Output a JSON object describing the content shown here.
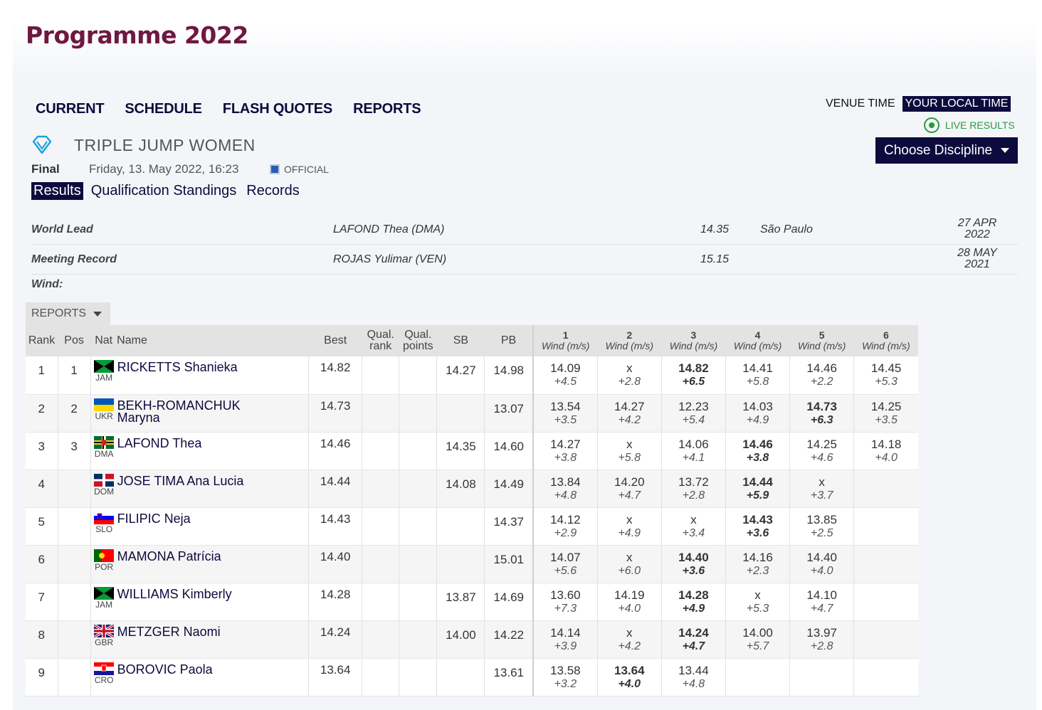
{
  "header": {
    "title": "Programme 2022"
  },
  "nav": [
    {
      "label": "CURRENT"
    },
    {
      "label": "SCHEDULE"
    },
    {
      "label": "FLASH QUOTES"
    },
    {
      "label": "REPORTS"
    }
  ],
  "time": {
    "venue_label": "VENUE TIME",
    "local_label": "YOUR LOCAL TIME"
  },
  "live_results": "LIVE RESULTS",
  "choose_discipline": "Choose Discipline",
  "event": {
    "title": "TRIPLE JUMP WOMEN",
    "round": "Final",
    "datetime": "Friday, 13. May 2022, 16:23",
    "status": "OFFICIAL"
  },
  "tabs": [
    {
      "label": "Results"
    },
    {
      "label": "Qualification Standings"
    },
    {
      "label": "Records"
    }
  ],
  "records": [
    {
      "label": "World Lead",
      "athlete": "LAFOND Thea (DMA)",
      "mark": "14.35",
      "venue": "São Paulo",
      "date1": "27 APR",
      "date2": "2022"
    },
    {
      "label": "Meeting Record",
      "athlete": "ROJAS Yulimar (VEN)",
      "mark": "15.15",
      "venue": "",
      "date1": "28 MAY",
      "date2": "2021"
    }
  ],
  "wind_label": "Wind:",
  "reports_dropdown": "REPORTS",
  "columns": {
    "rank": "Rank",
    "pos": "Pos",
    "nat": "Nat",
    "name": "Name",
    "best": "Best",
    "qual_rank_1": "Qual.",
    "qual_rank_2": "rank",
    "qual_points_1": "Qual.",
    "qual_points_2": "points",
    "sb": "SB",
    "pb": "PB",
    "attempts": [
      "1",
      "2",
      "3",
      "4",
      "5",
      "6"
    ],
    "wind_unit": "Wind (m/s)"
  },
  "flag_colors": {
    "JAM": [
      "#009b3a",
      "#fed100",
      "#000000"
    ],
    "UKR": [
      "#0057b7",
      "#ffd700"
    ],
    "DMA": [
      "#006b3f",
      "#fcd116",
      "#000000",
      "#ffffff",
      "#d41c30"
    ],
    "DOM": [
      "#002d62",
      "#ce1126",
      "#ffffff"
    ],
    "SLO": [
      "#ffffff",
      "#0000ff",
      "#ff0000"
    ],
    "POR": [
      "#006600",
      "#ff0000"
    ],
    "GBR": [
      "#012169",
      "#ffffff",
      "#c8102e"
    ],
    "CRO": [
      "#ff0000",
      "#ffffff",
      "#171796"
    ]
  },
  "results": [
    {
      "rank": "1",
      "pos": "1",
      "nat": "JAM",
      "name1": "RICKETTS Shanieka",
      "name2": "",
      "best": "14.82",
      "qr": "",
      "qp": "",
      "sb": "14.27",
      "pb": "14.98",
      "attempts": [
        {
          "m": "14.09",
          "w": "+4.5",
          "b": false
        },
        {
          "m": "x",
          "w": "+2.8",
          "b": false
        },
        {
          "m": "14.82",
          "w": "+6.5",
          "b": true
        },
        {
          "m": "14.41",
          "w": "+5.8",
          "b": false
        },
        {
          "m": "14.46",
          "w": "+2.2",
          "b": false
        },
        {
          "m": "14.45",
          "w": "+5.3",
          "b": false
        }
      ]
    },
    {
      "rank": "2",
      "pos": "2",
      "nat": "UKR",
      "name1": "BEKH-ROMANCHUK",
      "name2": "Maryna",
      "best": "14.73",
      "qr": "",
      "qp": "",
      "sb": "",
      "pb": "13.07",
      "attempts": [
        {
          "m": "13.54",
          "w": "+3.5",
          "b": false
        },
        {
          "m": "14.27",
          "w": "+4.2",
          "b": false
        },
        {
          "m": "12.23",
          "w": "+5.4",
          "b": false
        },
        {
          "m": "14.03",
          "w": "+4.9",
          "b": false
        },
        {
          "m": "14.73",
          "w": "+6.3",
          "b": true
        },
        {
          "m": "14.25",
          "w": "+3.5",
          "b": false
        }
      ]
    },
    {
      "rank": "3",
      "pos": "3",
      "nat": "DMA",
      "name1": "LAFOND Thea",
      "name2": "",
      "best": "14.46",
      "qr": "",
      "qp": "",
      "sb": "14.35",
      "pb": "14.60",
      "attempts": [
        {
          "m": "14.27",
          "w": "+3.8",
          "b": false
        },
        {
          "m": "x",
          "w": "+5.8",
          "b": false
        },
        {
          "m": "14.06",
          "w": "+4.1",
          "b": false
        },
        {
          "m": "14.46",
          "w": "+3.8",
          "b": true
        },
        {
          "m": "14.25",
          "w": "+4.6",
          "b": false
        },
        {
          "m": "14.18",
          "w": "+4.0",
          "b": false
        }
      ]
    },
    {
      "rank": "4",
      "pos": "",
      "nat": "DOM",
      "name1": "JOSE TIMA Ana Lucia",
      "name2": "",
      "best": "14.44",
      "qr": "",
      "qp": "",
      "sb": "14.08",
      "pb": "14.49",
      "attempts": [
        {
          "m": "13.84",
          "w": "+4.8",
          "b": false
        },
        {
          "m": "14.20",
          "w": "+4.7",
          "b": false
        },
        {
          "m": "13.72",
          "w": "+2.8",
          "b": false
        },
        {
          "m": "14.44",
          "w": "+5.9",
          "b": true
        },
        {
          "m": "x",
          "w": "+3.7",
          "b": false
        },
        {
          "m": "",
          "w": "",
          "b": false
        }
      ]
    },
    {
      "rank": "5",
      "pos": "",
      "nat": "SLO",
      "name1": "FILIPIC Neja",
      "name2": "",
      "best": "14.43",
      "qr": "",
      "qp": "",
      "sb": "",
      "pb": "14.37",
      "attempts": [
        {
          "m": "14.12",
          "w": "+2.9",
          "b": false
        },
        {
          "m": "x",
          "w": "+4.9",
          "b": false
        },
        {
          "m": "x",
          "w": "+3.4",
          "b": false
        },
        {
          "m": "14.43",
          "w": "+3.6",
          "b": true
        },
        {
          "m": "13.85",
          "w": "+2.5",
          "b": false
        },
        {
          "m": "",
          "w": "",
          "b": false
        }
      ]
    },
    {
      "rank": "6",
      "pos": "",
      "nat": "POR",
      "name1": "MAMONA Patrícia",
      "name2": "",
      "best": "14.40",
      "qr": "",
      "qp": "",
      "sb": "",
      "pb": "15.01",
      "attempts": [
        {
          "m": "14.07",
          "w": "+5.6",
          "b": false
        },
        {
          "m": "x",
          "w": "+6.0",
          "b": false
        },
        {
          "m": "14.40",
          "w": "+3.6",
          "b": true
        },
        {
          "m": "14.16",
          "w": "+2.3",
          "b": false
        },
        {
          "m": "14.40",
          "w": "+4.0",
          "b": false
        },
        {
          "m": "",
          "w": "",
          "b": false
        }
      ]
    },
    {
      "rank": "7",
      "pos": "",
      "nat": "JAM",
      "name1": "WILLIAMS Kimberly",
      "name2": "",
      "best": "14.28",
      "qr": "",
      "qp": "",
      "sb": "13.87",
      "pb": "14.69",
      "attempts": [
        {
          "m": "13.60",
          "w": "+7.3",
          "b": false
        },
        {
          "m": "14.19",
          "w": "+4.0",
          "b": false
        },
        {
          "m": "14.28",
          "w": "+4.9",
          "b": true
        },
        {
          "m": "x",
          "w": "+5.3",
          "b": false
        },
        {
          "m": "14.10",
          "w": "+4.7",
          "b": false
        },
        {
          "m": "",
          "w": "",
          "b": false
        }
      ]
    },
    {
      "rank": "8",
      "pos": "",
      "nat": "GBR",
      "name1": "METZGER Naomi",
      "name2": "",
      "best": "14.24",
      "qr": "",
      "qp": "",
      "sb": "14.00",
      "pb": "14.22",
      "attempts": [
        {
          "m": "14.14",
          "w": "+3.9",
          "b": false
        },
        {
          "m": "x",
          "w": "+4.2",
          "b": false
        },
        {
          "m": "14.24",
          "w": "+4.7",
          "b": true
        },
        {
          "m": "14.00",
          "w": "+5.7",
          "b": false
        },
        {
          "m": "13.97",
          "w": "+2.8",
          "b": false
        },
        {
          "m": "",
          "w": "",
          "b": false
        }
      ]
    },
    {
      "rank": "9",
      "pos": "",
      "nat": "CRO",
      "name1": "BOROVIC Paola",
      "name2": "",
      "best": "13.64",
      "qr": "",
      "qp": "",
      "sb": "",
      "pb": "13.61",
      "attempts": [
        {
          "m": "13.58",
          "w": "+3.2",
          "b": false
        },
        {
          "m": "13.64",
          "w": "+4.0",
          "b": true
        },
        {
          "m": "13.44",
          "w": "+4.8",
          "b": false
        },
        {
          "m": "",
          "w": "",
          "b": false
        },
        {
          "m": "",
          "w": "",
          "b": false
        },
        {
          "m": "",
          "w": "",
          "b": false
        }
      ]
    }
  ]
}
